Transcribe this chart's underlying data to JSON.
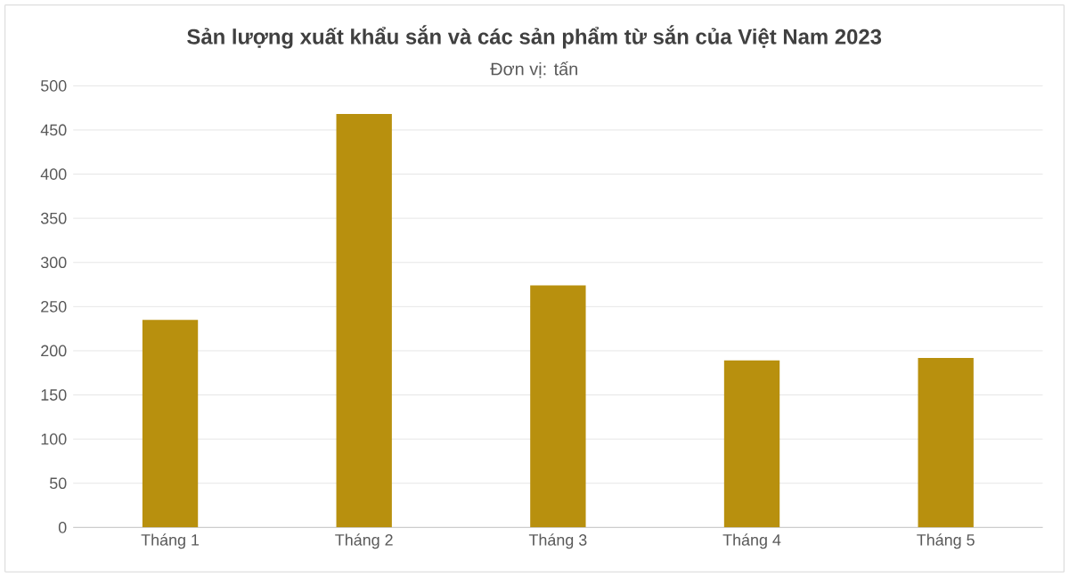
{
  "chart_data": {
    "type": "bar",
    "title": "Sản lượng xuất khẩu sắn và các sản phẩm từ sắn của Việt Nam 2023",
    "subtitle": "Đơn vị: tấn",
    "categories": [
      "Tháng 1",
      "Tháng 2",
      "Tháng 3",
      "Tháng 4",
      "Tháng 5"
    ],
    "values": [
      235,
      468,
      274,
      189,
      192
    ],
    "color": "#b8900e",
    "ylim": [
      0,
      500
    ],
    "yticks": [
      0,
      50,
      100,
      150,
      200,
      250,
      300,
      350,
      400,
      450,
      500
    ],
    "grid": "y"
  }
}
